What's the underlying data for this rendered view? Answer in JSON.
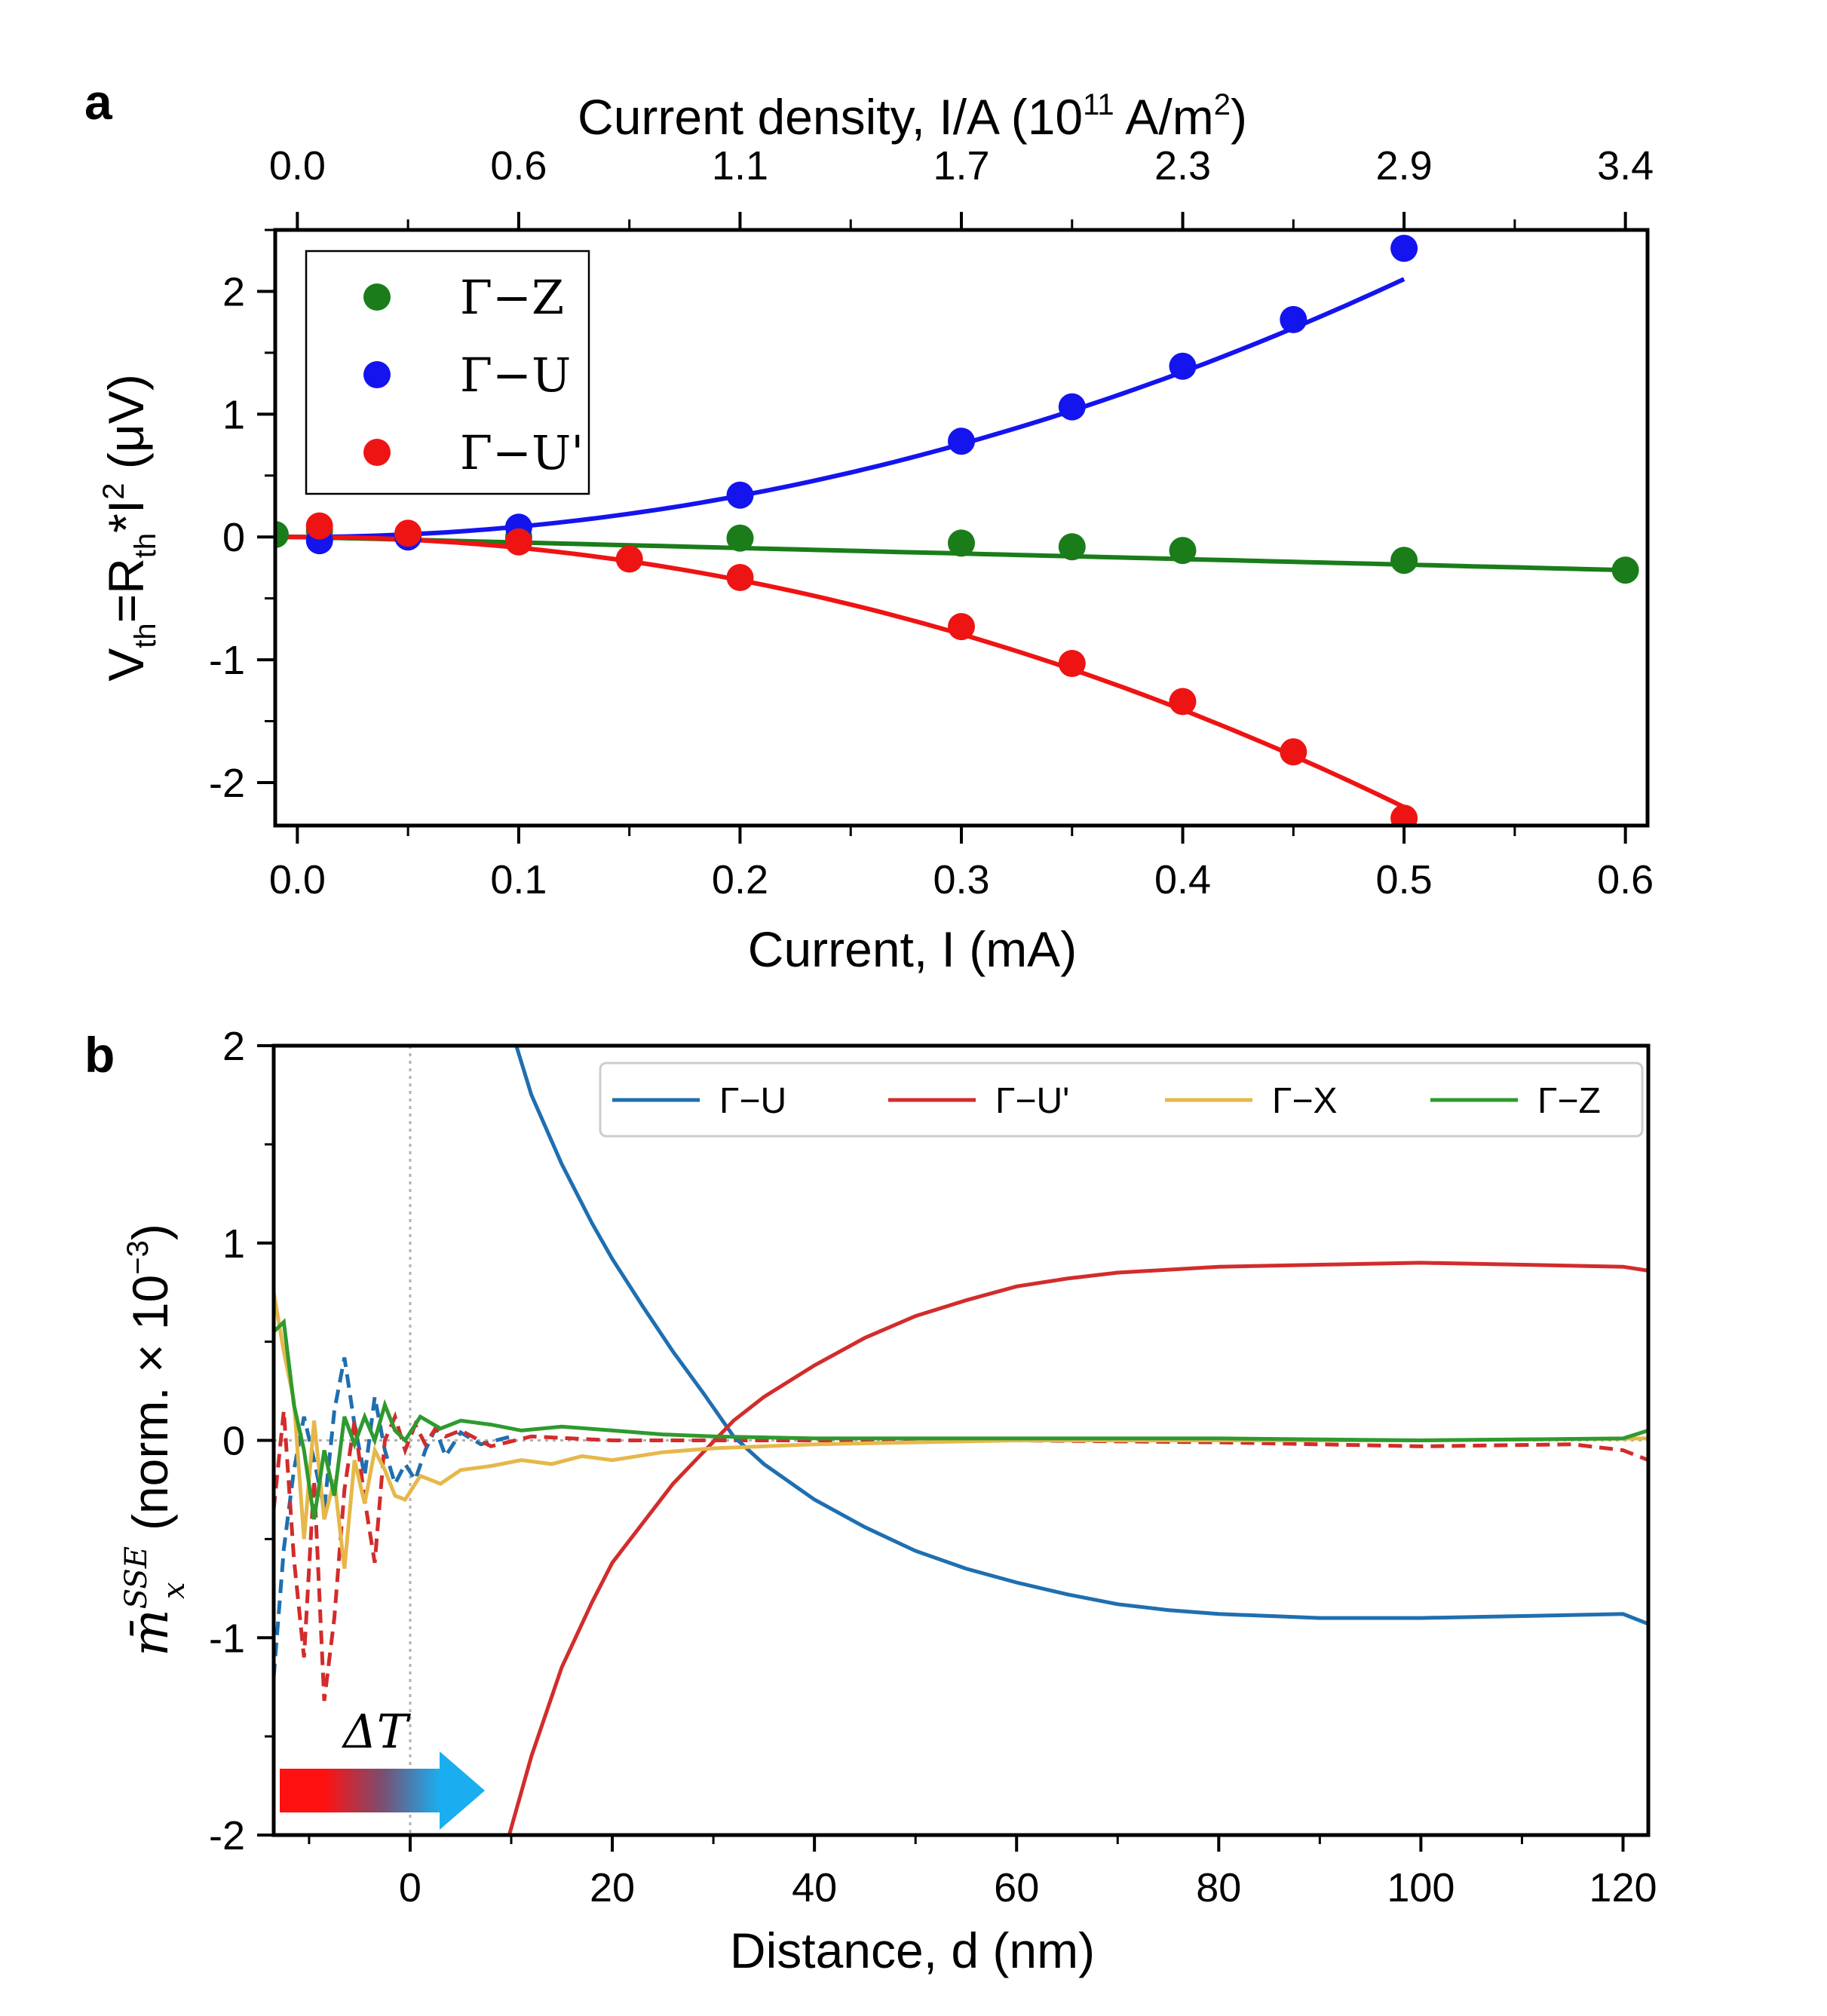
{
  "colors": {
    "gz": "#1a7d1a",
    "gu": "#1414ee",
    "guprime": "#ee1414",
    "b_gu": "#1f6fb0",
    "b_guprime": "#d22c2c",
    "b_gx": "#e6b84a",
    "b_gz": "#2e9a2e",
    "arrow_left": "#ff1111",
    "arrow_right": "#1aaef0"
  },
  "chart_data": [
    {
      "panel": "a",
      "type": "scatter",
      "title": "",
      "xlabel": "Current, I (mA)",
      "xlim": [
        -0.01,
        0.61
      ],
      "x_ticks": [
        0.0,
        0.1,
        0.2,
        0.3,
        0.4,
        0.5,
        0.6
      ],
      "x_tick_labels": [
        "0.0",
        "0.1",
        "0.2",
        "0.3",
        "0.4",
        "0.5",
        "0.6"
      ],
      "ylabel": {
        "pre": "V",
        "sub1": "th",
        "mid": "=R",
        "sub2": "th",
        "mid2": "*I",
        "sup": "2",
        "post": " (μV)"
      },
      "ylim": [
        -2.35,
        2.5
      ],
      "y_ticks": [
        -2,
        -1,
        0,
        1,
        2
      ],
      "y_tick_labels": [
        "-2",
        "-1",
        "0",
        "1",
        "2"
      ],
      "top_axis": {
        "label": {
          "pre": "Current density, I/A (10",
          "sup1": "11",
          "mid": " A/m",
          "sup2": "2",
          "post": ")"
        },
        "tick_labels": [
          "0.0",
          "0.6",
          "1.1",
          "1.7",
          "2.3",
          "2.9",
          "3.4"
        ]
      },
      "legend": {
        "position": "top-left",
        "entries": [
          "Γ−Z",
          "Γ−U",
          "Γ−U'"
        ]
      },
      "series": [
        {
          "name": "Γ−Z",
          "color_key": "gz",
          "x": [
            -0.01,
            0.01,
            0.05,
            0.1,
            0.2,
            0.3,
            0.35,
            0.4,
            0.5,
            0.6
          ],
          "y": [
            0.02,
            0.05,
            0.01,
            0.0,
            -0.01,
            -0.05,
            -0.08,
            -0.11,
            -0.19,
            -0.27
          ],
          "fit": {
            "form": "a*x",
            "a": -0.45,
            "xrange": [
              -0.01,
              0.6
            ]
          }
        },
        {
          "name": "Γ−U",
          "color_key": "gu",
          "x": [
            0.01,
            0.05,
            0.1,
            0.2,
            0.3,
            0.35,
            0.4,
            0.45,
            0.5
          ],
          "y": [
            -0.03,
            0.0,
            0.08,
            0.34,
            0.78,
            1.06,
            1.39,
            1.77,
            2.35
          ],
          "fit": {
            "form": "a*x^2",
            "a": 8.4,
            "xrange": [
              -0.01,
              0.5
            ]
          }
        },
        {
          "name": "Γ−U'",
          "color_key": "guprime",
          "x": [
            0.01,
            0.05,
            0.1,
            0.15,
            0.2,
            0.3,
            0.35,
            0.4,
            0.45,
            0.5
          ],
          "y": [
            0.09,
            0.03,
            -0.04,
            -0.18,
            -0.33,
            -0.73,
            -1.03,
            -1.34,
            -1.75,
            -2.29
          ],
          "fit": {
            "form": "a*x^2",
            "a": -8.8,
            "xrange": [
              -0.01,
              0.5
            ]
          }
        }
      ]
    },
    {
      "panel": "b",
      "type": "line",
      "title": "",
      "xlabel": "Distance, d (nm)",
      "xlim": [
        -13.5,
        122.5
      ],
      "x_ticks": [
        0,
        20,
        40,
        60,
        80,
        100,
        120
      ],
      "x_tick_labels": [
        "0",
        "20",
        "40",
        "60",
        "80",
        "100",
        "120"
      ],
      "ylabel": {
        "symbol": "m̄",
        "sup": "SSE",
        "sub": "x",
        "text": " (norm. × 10",
        "exp": "−3",
        "close": ")"
      },
      "ylim": [
        -2,
        2
      ],
      "y_ticks": [
        -2,
        -1,
        0,
        1,
        2
      ],
      "y_tick_labels": [
        "-2",
        "-1",
        "0",
        "1",
        "2"
      ],
      "legend": {
        "position": "top-right",
        "entries": [
          "Γ−U",
          "Γ−U'",
          "Γ−X",
          "Γ−Z"
        ]
      },
      "annotation": "ΔT",
      "series": [
        {
          "name": "Γ−U",
          "color_key": "b_gu",
          "solid": [
            [
              10.5,
              2.0
            ],
            [
              12,
              1.75
            ],
            [
              15,
              1.4
            ],
            [
              18,
              1.1
            ],
            [
              20,
              0.92
            ],
            [
              23,
              0.68
            ],
            [
              26,
              0.45
            ],
            [
              29,
              0.24
            ],
            [
              32,
              0.02
            ],
            [
              35,
              -0.12
            ],
            [
              40,
              -0.3
            ],
            [
              45,
              -0.44
            ],
            [
              50,
              -0.56
            ],
            [
              55,
              -0.65
            ],
            [
              60,
              -0.72
            ],
            [
              65,
              -0.78
            ],
            [
              70,
              -0.83
            ],
            [
              75,
              -0.86
            ],
            [
              80,
              -0.88
            ],
            [
              90,
              -0.9
            ],
            [
              100,
              -0.9
            ],
            [
              110,
              -0.89
            ],
            [
              120,
              -0.88
            ],
            [
              122.5,
              -0.93
            ]
          ],
          "dashed": [
            [
              -13.5,
              -1.2
            ],
            [
              -12.5,
              -0.55
            ],
            [
              -11.5,
              -0.15
            ],
            [
              -10.5,
              0.12
            ],
            [
              -9.5,
              -0.1
            ],
            [
              -8.5,
              -0.35
            ],
            [
              -7.5,
              0.15
            ],
            [
              -6.5,
              0.42
            ],
            [
              -5.5,
              0.08
            ],
            [
              -4.5,
              -0.18
            ],
            [
              -3.5,
              0.22
            ],
            [
              -2.5,
              -0.05
            ],
            [
              -1.5,
              -0.22
            ],
            [
              -0.5,
              -0.12
            ],
            [
              0.5,
              -0.2
            ],
            [
              1.5,
              -0.05
            ],
            [
              2.5,
              0.06
            ],
            [
              3.5,
              -0.08
            ],
            [
              5,
              0.04
            ],
            [
              7,
              -0.02
            ],
            [
              10,
              0.02
            ]
          ]
        },
        {
          "name": "Γ−U'",
          "color_key": "b_guprime",
          "solid": [
            [
              9.8,
              -2.0
            ],
            [
              12,
              -1.6
            ],
            [
              15,
              -1.15
            ],
            [
              18,
              -0.82
            ],
            [
              20,
              -0.62
            ],
            [
              23,
              -0.42
            ],
            [
              26,
              -0.22
            ],
            [
              29,
              -0.06
            ],
            [
              32,
              0.1
            ],
            [
              35,
              0.22
            ],
            [
              40,
              0.38
            ],
            [
              45,
              0.52
            ],
            [
              50,
              0.63
            ],
            [
              55,
              0.71
            ],
            [
              60,
              0.78
            ],
            [
              65,
              0.82
            ],
            [
              70,
              0.85
            ],
            [
              80,
              0.88
            ],
            [
              90,
              0.89
            ],
            [
              100,
              0.9
            ],
            [
              110,
              0.89
            ],
            [
              120,
              0.88
            ],
            [
              122.5,
              0.86
            ]
          ],
          "dashed": [
            [
              -13.5,
              -0.35
            ],
            [
              -12.5,
              0.15
            ],
            [
              -11.5,
              -0.6
            ],
            [
              -10.5,
              -1.1
            ],
            [
              -9.5,
              -0.2
            ],
            [
              -8.5,
              -1.32
            ],
            [
              -7.5,
              -0.9
            ],
            [
              -6.5,
              -0.25
            ],
            [
              -5.5,
              0.1
            ],
            [
              -4.5,
              -0.3
            ],
            [
              -3.5,
              -0.62
            ],
            [
              -2.5,
              0.0
            ],
            [
              -1.5,
              0.12
            ],
            [
              -0.5,
              -0.05
            ],
            [
              0.5,
              0.08
            ],
            [
              1.5,
              -0.02
            ],
            [
              2.5,
              0.06
            ],
            [
              3.5,
              0.02
            ],
            [
              5,
              0.05
            ],
            [
              8,
              -0.03
            ],
            [
              12,
              0.02
            ],
            [
              20,
              0.0
            ],
            [
              40,
              0.0
            ],
            [
              60,
              0.0
            ],
            [
              80,
              -0.01
            ],
            [
              100,
              -0.03
            ],
            [
              115,
              -0.02
            ],
            [
              120,
              -0.05
            ],
            [
              122.5,
              -0.1
            ]
          ]
        },
        {
          "name": "Γ−X",
          "color_key": "b_gx",
          "solid": [
            [
              -13.5,
              0.75
            ],
            [
              -12.5,
              0.45
            ],
            [
              -11.5,
              0.2
            ],
            [
              -10.5,
              -0.5
            ],
            [
              -9.5,
              0.1
            ],
            [
              -8.5,
              -0.4
            ],
            [
              -7.5,
              -0.2
            ],
            [
              -6.5,
              -0.65
            ],
            [
              -5.5,
              -0.1
            ],
            [
              -4.5,
              -0.32
            ],
            [
              -3.5,
              -0.05
            ],
            [
              -2.5,
              -0.15
            ],
            [
              -1.5,
              -0.28
            ],
            [
              -0.5,
              -0.3
            ],
            [
              1,
              -0.18
            ],
            [
              3,
              -0.22
            ],
            [
              5,
              -0.15
            ],
            [
              8,
              -0.13
            ],
            [
              11,
              -0.1
            ],
            [
              14,
              -0.12
            ],
            [
              17,
              -0.08
            ],
            [
              20,
              -0.1
            ],
            [
              25,
              -0.06
            ],
            [
              30,
              -0.04
            ],
            [
              35,
              -0.03
            ],
            [
              40,
              -0.02
            ],
            [
              50,
              -0.01
            ],
            [
              60,
              0.0
            ],
            [
              80,
              0.0
            ],
            [
              100,
              0.0
            ],
            [
              122.5,
              0.01
            ]
          ]
        },
        {
          "name": "Γ−Z",
          "color_key": "b_gz",
          "solid": [
            [
              -13.5,
              0.55
            ],
            [
              -12.5,
              0.6
            ],
            [
              -11.5,
              0.18
            ],
            [
              -10.5,
              -0.05
            ],
            [
              -9.5,
              -0.4
            ],
            [
              -8.5,
              -0.05
            ],
            [
              -7.5,
              -0.28
            ],
            [
              -6.5,
              0.12
            ],
            [
              -5.5,
              -0.02
            ],
            [
              -4.5,
              0.12
            ],
            [
              -3.5,
              0.0
            ],
            [
              -2.5,
              0.18
            ],
            [
              -1.5,
              0.05
            ],
            [
              -0.5,
              0.0
            ],
            [
              1,
              0.12
            ],
            [
              3,
              0.06
            ],
            [
              5,
              0.1
            ],
            [
              8,
              0.08
            ],
            [
              11,
              0.05
            ],
            [
              15,
              0.07
            ],
            [
              20,
              0.05
            ],
            [
              25,
              0.03
            ],
            [
              30,
              0.02
            ],
            [
              40,
              0.01
            ],
            [
              60,
              0.01
            ],
            [
              80,
              0.01
            ],
            [
              100,
              0.0
            ],
            [
              120,
              0.01
            ],
            [
              122.5,
              0.05
            ]
          ]
        }
      ]
    }
  ]
}
